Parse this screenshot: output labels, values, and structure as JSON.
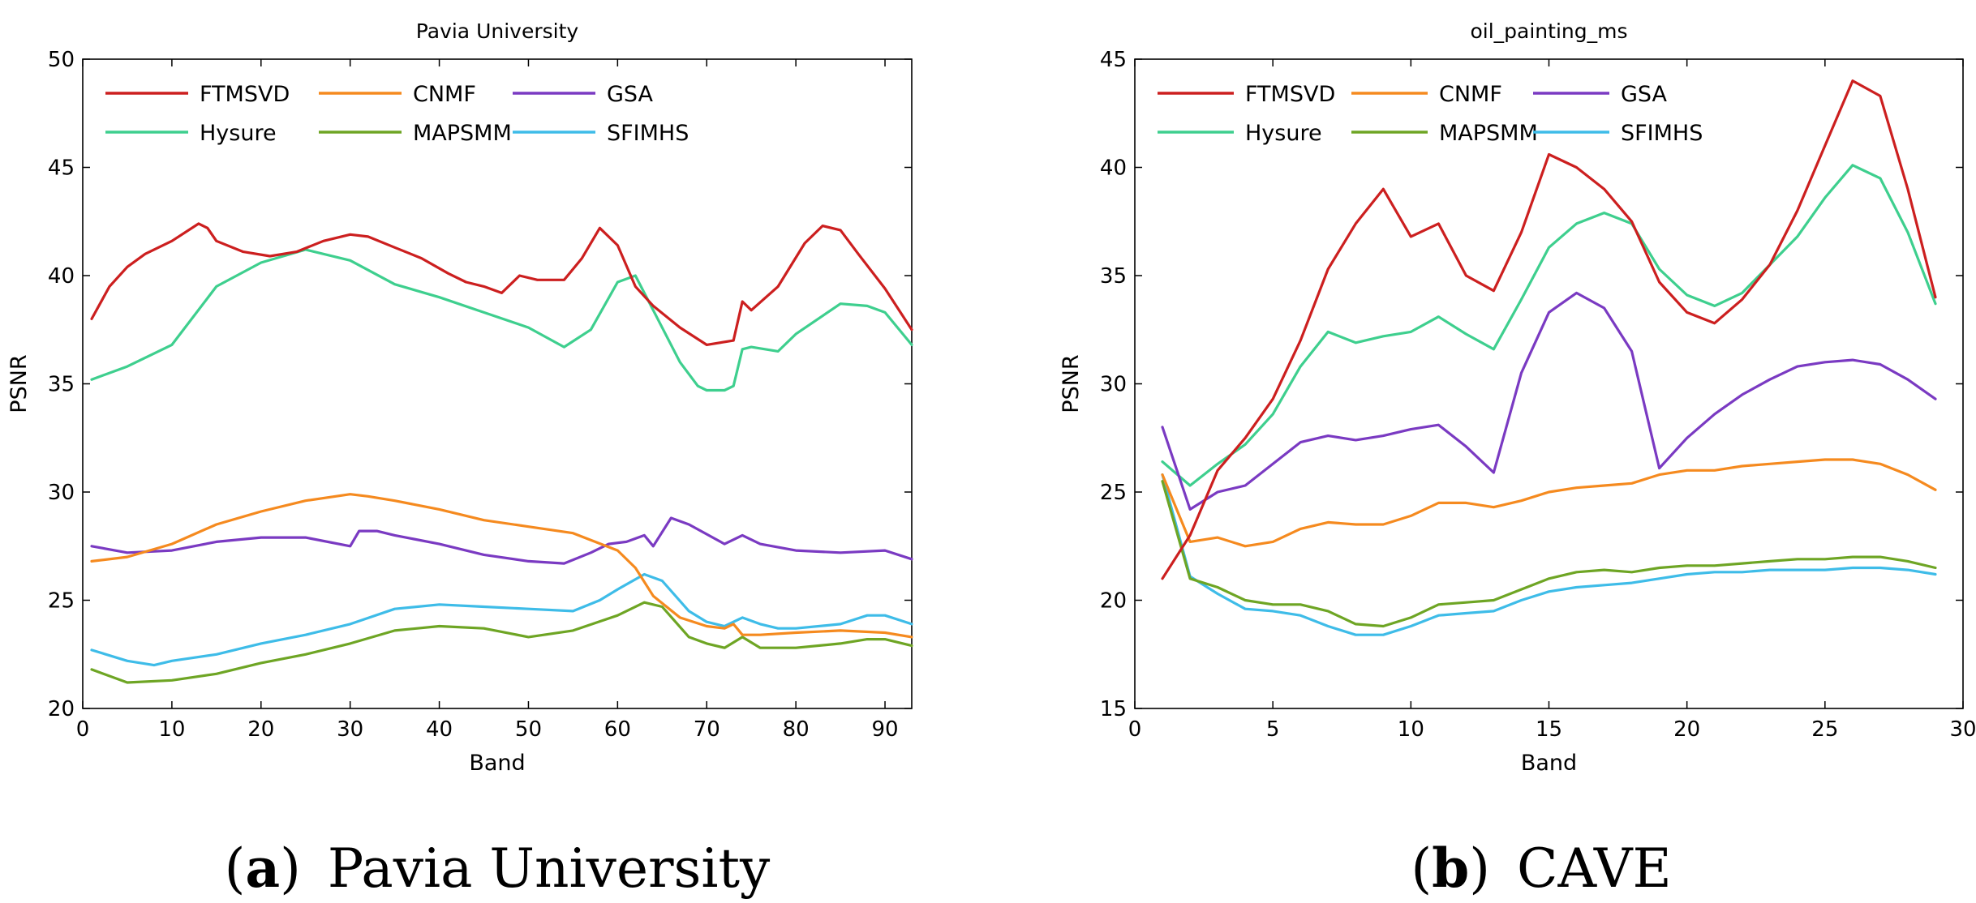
{
  "chart_data": [
    {
      "type": "line",
      "title": "Pavia University",
      "xlabel": "Band",
      "ylabel": "PSNR",
      "xlim": [
        0,
        93
      ],
      "ylim": [
        20,
        50
      ],
      "xticks": [
        0,
        10,
        20,
        30,
        40,
        50,
        60,
        70,
        80,
        90
      ],
      "yticks": [
        20,
        25,
        30,
        35,
        40,
        45,
        50
      ],
      "caption_label": "a",
      "caption_text": "Pavia University",
      "legend_position": "top-left",
      "series": [
        {
          "name": "FTMSVD",
          "color": "#cc1f1f",
          "x": [
            1,
            3,
            5,
            7,
            10,
            13,
            14,
            15,
            18,
            21,
            24,
            27,
            30,
            32,
            35,
            38,
            41,
            43,
            45,
            47,
            49,
            51,
            54,
            56,
            58,
            60,
            62,
            64,
            67,
            70,
            73,
            74,
            75,
            78,
            81,
            83,
            85,
            87,
            90,
            93
          ],
          "y": [
            38,
            39.5,
            40.4,
            41,
            41.6,
            42.4,
            42.2,
            41.6,
            41.1,
            40.9,
            41.1,
            41.6,
            41.9,
            41.8,
            41.3,
            40.8,
            40.1,
            39.7,
            39.5,
            39.2,
            40,
            39.8,
            39.8,
            40.8,
            42.2,
            41.4,
            39.5,
            38.6,
            37.6,
            36.8,
            37,
            38.8,
            38.4,
            39.5,
            41.5,
            42.3,
            42.1,
            41,
            39.4,
            37.5
          ]
        },
        {
          "name": "CNMF",
          "color": "#f58a1f",
          "x": [
            1,
            5,
            10,
            15,
            20,
            25,
            30,
            32,
            35,
            40,
            45,
            50,
            55,
            60,
            62,
            64,
            67,
            70,
            72,
            73,
            74,
            76,
            80,
            85,
            90,
            93
          ],
          "y": [
            26.8,
            27,
            27.6,
            28.5,
            29.1,
            29.6,
            29.9,
            29.8,
            29.6,
            29.2,
            28.7,
            28.4,
            28.1,
            27.3,
            26.5,
            25.2,
            24.2,
            23.8,
            23.7,
            23.9,
            23.4,
            23.4,
            23.5,
            23.6,
            23.5,
            23.3
          ]
        },
        {
          "name": "GSA",
          "color": "#7a3ac2",
          "x": [
            1,
            5,
            10,
            15,
            20,
            25,
            30,
            31,
            33,
            35,
            40,
            45,
            50,
            54,
            57,
            59,
            61,
            63,
            64,
            66,
            68,
            72,
            74,
            76,
            80,
            85,
            90,
            93
          ],
          "y": [
            27.5,
            27.2,
            27.3,
            27.7,
            27.9,
            27.9,
            27.5,
            28.2,
            28.2,
            28,
            27.6,
            27.1,
            26.8,
            26.7,
            27.2,
            27.6,
            27.7,
            28,
            27.5,
            28.8,
            28.5,
            27.6,
            28,
            27.6,
            27.3,
            27.2,
            27.3,
            26.9
          ]
        },
        {
          "name": "Hysure",
          "color": "#3ecf8e",
          "x": [
            1,
            5,
            10,
            15,
            20,
            25,
            30,
            35,
            40,
            45,
            50,
            54,
            57,
            60,
            62,
            64,
            67,
            69,
            70,
            72,
            73,
            74,
            75,
            78,
            80,
            85,
            88,
            90,
            93
          ],
          "y": [
            35.2,
            35.8,
            36.8,
            39.5,
            40.6,
            41.2,
            40.7,
            39.6,
            39,
            38.3,
            37.6,
            36.7,
            37.5,
            39.7,
            40,
            38.4,
            36,
            34.9,
            34.7,
            34.7,
            34.9,
            36.6,
            36.7,
            36.5,
            37.3,
            38.7,
            38.6,
            38.3,
            36.8
          ]
        },
        {
          "name": "MAPSMM",
          "color": "#6ea524",
          "x": [
            1,
            5,
            10,
            15,
            20,
            25,
            30,
            35,
            40,
            45,
            50,
            55,
            60,
            63,
            65,
            68,
            70,
            72,
            74,
            76,
            80,
            85,
            88,
            90,
            93
          ],
          "y": [
            21.8,
            21.2,
            21.3,
            21.6,
            22.1,
            22.5,
            23,
            23.6,
            23.8,
            23.7,
            23.3,
            23.6,
            24.3,
            24.9,
            24.7,
            23.3,
            23,
            22.8,
            23.3,
            22.8,
            22.8,
            23,
            23.2,
            23.2,
            22.9
          ]
        },
        {
          "name": "SFIMHS",
          "color": "#3ebce8",
          "x": [
            1,
            5,
            8,
            10,
            15,
            20,
            25,
            30,
            35,
            40,
            45,
            50,
            55,
            58,
            60,
            63,
            65,
            68,
            70,
            72,
            74,
            76,
            78,
            80,
            85,
            88,
            90,
            93
          ],
          "y": [
            22.7,
            22.2,
            22,
            22.2,
            22.5,
            23,
            23.4,
            23.9,
            24.6,
            24.8,
            24.7,
            24.6,
            24.5,
            25,
            25.5,
            26.2,
            25.9,
            24.5,
            24,
            23.8,
            24.2,
            23.9,
            23.7,
            23.7,
            23.9,
            24.3,
            24.3,
            23.9
          ]
        }
      ]
    },
    {
      "type": "line",
      "title": "oil_painting_ms",
      "xlabel": "Band",
      "ylabel": "PSNR",
      "xlim": [
        0,
        30
      ],
      "ylim": [
        15,
        45
      ],
      "xticks": [
        0,
        5,
        10,
        15,
        20,
        25,
        30
      ],
      "yticks": [
        15,
        20,
        25,
        30,
        35,
        40,
        45
      ],
      "caption_label": "b",
      "caption_text": "CAVE",
      "legend_position": "top-left",
      "series": [
        {
          "name": "FTMSVD",
          "color": "#cc1f1f",
          "x": [
            1,
            2,
            3,
            4,
            5,
            6,
            7,
            8,
            9,
            10,
            11,
            12,
            13,
            14,
            15,
            16,
            17,
            18,
            19,
            20,
            21,
            22,
            23,
            24,
            25,
            26,
            27,
            28,
            29
          ],
          "y": [
            21,
            23,
            26,
            27.5,
            29.3,
            32,
            35.3,
            37.4,
            39,
            36.8,
            37.4,
            35,
            34.3,
            37,
            40.6,
            40,
            39,
            37.5,
            34.7,
            33.3,
            32.8,
            33.9,
            35.5,
            38,
            41,
            44,
            43.3,
            39,
            34
          ]
        },
        {
          "name": "CNMF",
          "color": "#f58a1f",
          "x": [
            1,
            2,
            3,
            4,
            5,
            6,
            7,
            8,
            9,
            10,
            11,
            12,
            13,
            14,
            15,
            16,
            17,
            18,
            19,
            20,
            21,
            22,
            23,
            24,
            25,
            26,
            27,
            28,
            29
          ],
          "y": [
            25.8,
            22.7,
            22.9,
            22.5,
            22.7,
            23.3,
            23.6,
            23.5,
            23.5,
            23.9,
            24.5,
            24.5,
            24.3,
            24.6,
            25,
            25.2,
            25.3,
            25.4,
            25.8,
            26,
            26,
            26.2,
            26.3,
            26.4,
            26.5,
            26.5,
            26.3,
            25.8,
            25.1
          ]
        },
        {
          "name": "GSA",
          "color": "#7a3ac2",
          "x": [
            1,
            2,
            3,
            4,
            5,
            6,
            7,
            8,
            9,
            10,
            11,
            12,
            13,
            14,
            15,
            16,
            17,
            18,
            19,
            20,
            21,
            22,
            23,
            24,
            25,
            26,
            27,
            28,
            29
          ],
          "y": [
            28,
            24.2,
            25,
            25.3,
            26.3,
            27.3,
            27.6,
            27.4,
            27.6,
            27.9,
            28.1,
            27.1,
            25.9,
            30.5,
            33.3,
            34.2,
            33.5,
            31.5,
            26.1,
            27.5,
            28.6,
            29.5,
            30.2,
            30.8,
            31,
            31.1,
            30.9,
            30.2,
            29.3
          ]
        },
        {
          "name": "Hysure",
          "color": "#3ecf8e",
          "x": [
            1,
            2,
            3,
            4,
            5,
            6,
            7,
            8,
            9,
            10,
            11,
            12,
            13,
            14,
            15,
            16,
            17,
            18,
            19,
            20,
            21,
            22,
            23,
            24,
            25,
            26,
            27,
            28,
            29
          ],
          "y": [
            26.4,
            25.3,
            26.3,
            27.2,
            28.6,
            30.8,
            32.4,
            31.9,
            32.2,
            32.4,
            33.1,
            32.3,
            31.6,
            33.9,
            36.3,
            37.4,
            37.9,
            37.4,
            35.3,
            34.1,
            33.6,
            34.2,
            35.5,
            36.8,
            38.6,
            40.1,
            39.5,
            37,
            33.7
          ]
        },
        {
          "name": "MAPSMM",
          "color": "#6ea524",
          "x": [
            1,
            2,
            3,
            4,
            5,
            6,
            7,
            8,
            9,
            10,
            11,
            12,
            13,
            14,
            15,
            16,
            17,
            18,
            19,
            20,
            21,
            22,
            23,
            24,
            25,
            26,
            27,
            28,
            29
          ],
          "y": [
            25.5,
            21,
            20.6,
            20,
            19.8,
            19.8,
            19.5,
            18.9,
            18.8,
            19.2,
            19.8,
            19.9,
            20,
            20.5,
            21,
            21.3,
            21.4,
            21.3,
            21.5,
            21.6,
            21.6,
            21.7,
            21.8,
            21.9,
            21.9,
            22,
            22,
            21.8,
            21.5
          ]
        },
        {
          "name": "SFIMHS",
          "color": "#3ebce8",
          "x": [
            1,
            2,
            3,
            4,
            5,
            6,
            7,
            8,
            9,
            10,
            11,
            12,
            13,
            14,
            15,
            16,
            17,
            18,
            19,
            20,
            21,
            22,
            23,
            24,
            25,
            26,
            27,
            28,
            29
          ],
          "y": [
            25.8,
            21.1,
            20.3,
            19.6,
            19.5,
            19.3,
            18.8,
            18.4,
            18.4,
            18.8,
            19.3,
            19.4,
            19.5,
            20,
            20.4,
            20.6,
            20.7,
            20.8,
            21,
            21.2,
            21.3,
            21.3,
            21.4,
            21.4,
            21.4,
            21.5,
            21.5,
            21.4,
            21.2
          ]
        }
      ]
    }
  ]
}
